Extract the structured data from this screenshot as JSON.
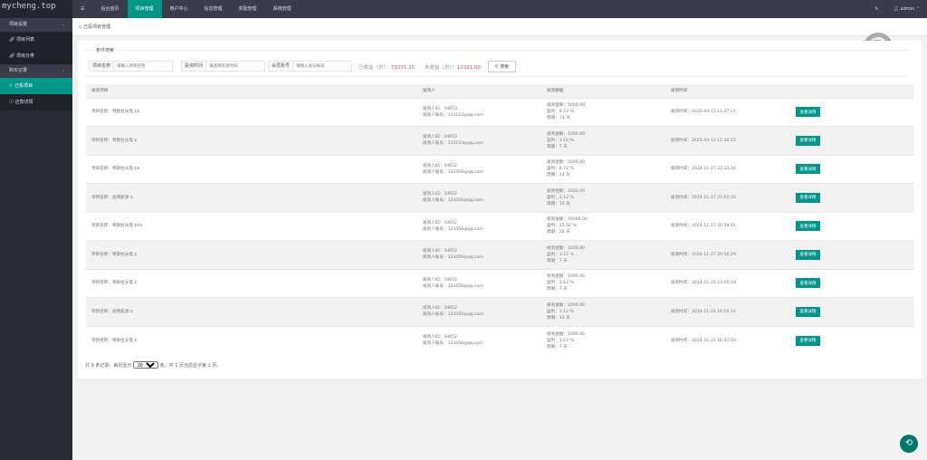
{
  "watermark": "mycheng.top",
  "sidebar": {
    "groups": [
      {
        "label": "项目设置",
        "items": [
          {
            "label": "项目列表",
            "icon": "link-icon"
          },
          {
            "label": "项目分类",
            "icon": "link-icon"
          }
        ]
      },
      {
        "label": "购买记录",
        "items": [
          {
            "label": "已投项目",
            "icon": "flag-icon",
            "active": true
          },
          {
            "label": "还款详情",
            "icon": "dollar-icon"
          }
        ]
      }
    ]
  },
  "topnav": {
    "menu_icon": "☰",
    "items": [
      "后台首页",
      "项目管理",
      "用户中心",
      "信息管理",
      "奖励管理",
      "系统管理"
    ],
    "active": "项目管理",
    "refresh_icon": "↻",
    "user": "admin"
  },
  "breadcrumb": "已投项目管理",
  "search": {
    "legend": "条件搜索",
    "fields": [
      {
        "label": "项目名称",
        "placeholder": "请输入项目名称"
      },
      {
        "label": "投资时间",
        "placeholder": "请选择投资时间"
      },
      {
        "label": "会员账号",
        "placeholder": "请输入会员账号"
      }
    ],
    "earned_label": "已收益（总）：",
    "earned": "73271.20",
    "pending_label": "未收益（总）：",
    "pending": "12321.00",
    "button": "搜索"
  },
  "table": {
    "headers": [
      "投资项目",
      "投资人",
      "投资数据",
      "投资时间",
      ""
    ],
    "rows": [
      {
        "project": "项目名称：特斯拉光电 $$",
        "uid": "投资人ID：34653",
        "account": "投资人账号：123123@qq.com",
        "amount": "投资金额：5000.00",
        "rate": "盈利：8.72 %",
        "period": "周期：14 天",
        "time": "投资时间：2025-04-13 11:47:21",
        "btn": "查看详情"
      },
      {
        "project": "项目名称：特斯拉光电 $",
        "uid": "投资人ID：34653",
        "account": "投资人账号：123123@qq.com",
        "amount": "投资金额：1000.00",
        "rate": "盈利：3.10 %",
        "period": "周期：7 天",
        "time": "投资时间：2025-04-13 11:46:15",
        "btn": "查看详情"
      },
      {
        "project": "项目名称：特斯拉光电 $$",
        "uid": "投资人ID：34652",
        "account": "投资人账号：123456@qq.com",
        "amount": "投资金额：5000.00",
        "rate": "盈利：8.72 %",
        "period": "周期：14 天",
        "time": "投资时间：2024-11-27 23:33:16",
        "btn": "查看详情"
      },
      {
        "project": "项目名称：迪拜能源 $",
        "uid": "投资人ID：34652",
        "account": "投资人账号：123456@qq.com",
        "amount": "投资金额：1000.00",
        "rate": "盈利：3.12 %",
        "period": "周期：10 天",
        "time": "投资时间：2024-11-27 21:02:32",
        "btn": "查看详情"
      },
      {
        "project": "项目名称：特斯拉光电 $$$",
        "uid": "投资人ID：34652",
        "account": "投资人账号：123456@qq.com",
        "amount": "投资金额：10000.00",
        "rate": "盈利：15.92 %",
        "period": "周期：28 天",
        "time": "投资时间：2024-11-27 20:58:01",
        "btn": "查看详情"
      },
      {
        "project": "项目名称：特斯拉光电 $",
        "uid": "投资人ID：34652",
        "account": "投资人账号：123456@qq.com",
        "amount": "投资金额：1000.00",
        "rate": "盈利：3.12 %",
        "period": "周期：7 天",
        "time": "投资时间：2024-11-27 20:56:29",
        "btn": "查看详情"
      },
      {
        "project": "项目名称：特斯拉光电 $",
        "uid": "投资人ID：34652",
        "account": "投资人账号：123456@qq.com",
        "amount": "投资金额：1000.00",
        "rate": "盈利：3.12 %",
        "period": "周期：7 天",
        "time": "投资时间：2024-11-24 23:05:19",
        "btn": "查看详情"
      },
      {
        "project": "项目名称：迪拜能源 $",
        "uid": "投资人ID：34652",
        "account": "投资人账号：123456@qq.com",
        "amount": "投资金额：2000.00",
        "rate": "盈利：3.12 %",
        "period": "周期：10 天",
        "time": "投资时间：2024-11-24 16:50:14",
        "btn": "查看详情"
      },
      {
        "project": "项目名称：特斯拉光电 $",
        "uid": "投资人ID：34652",
        "account": "投资人账号：123456@qq.com",
        "amount": "投资金额：1000.00",
        "rate": "盈利：3.12 %",
        "period": "周期：7 天",
        "time": "投资时间：2024-11-24 16:42:50",
        "btn": "查看详情"
      }
    ]
  },
  "pager": {
    "prefix": "共 9 条记录，每页显示",
    "per_page": "20",
    "suffix": "条，共 1 页当前显示第 1 页。"
  },
  "colors": {
    "accent": "#009688",
    "sidebar": "#282b33",
    "topbar": "#393d49",
    "amount": "#e05050"
  }
}
